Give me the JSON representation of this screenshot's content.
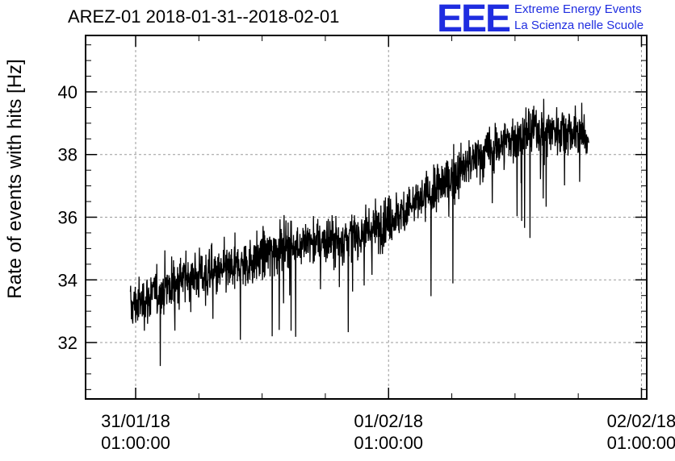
{
  "chart_data": {
    "type": "line",
    "title": "AREZ-01 2018-01-31--2018-02-01",
    "xlabel": "",
    "ylabel": "Rate of events with hits [Hz]",
    "xlim": [
      "2018-01-30T20:15:00",
      "2018-02-02T01:30:00"
    ],
    "ylim": [
      30.2,
      41.8
    ],
    "grid": true,
    "y_ticks": [
      32,
      34,
      36,
      38,
      40
    ],
    "x_ticks": [
      {
        "time": "2018-01-31T01:00:00",
        "date": "31/01/18",
        "clock": "01:00:00"
      },
      {
        "time": "2018-02-01T01:00:00",
        "date": "01/02/18",
        "clock": "01:00:00"
      },
      {
        "time": "2018-02-02T01:00:00",
        "date": "02/02/18",
        "clock": "01:00:00"
      }
    ],
    "series": [
      {
        "color": "#000000",
        "noise_amplitude": 1.0,
        "trend": [
          {
            "time": "2018-01-31T00:30:00",
            "value": 33.1
          },
          {
            "time": "2018-01-31T03:00:00",
            "value": 33.6
          },
          {
            "time": "2018-01-31T06:00:00",
            "value": 34.1
          },
          {
            "time": "2018-01-31T09:00:00",
            "value": 34.2
          },
          {
            "time": "2018-01-31T12:00:00",
            "value": 34.6
          },
          {
            "time": "2018-01-31T15:00:00",
            "value": 35.1
          },
          {
            "time": "2018-01-31T18:00:00",
            "value": 35.2
          },
          {
            "time": "2018-01-31T21:00:00",
            "value": 35.3
          },
          {
            "time": "2018-02-01T00:00:00",
            "value": 35.7
          },
          {
            "time": "2018-02-01T03:00:00",
            "value": 36.3
          },
          {
            "time": "2018-02-01T06:00:00",
            "value": 37.0
          },
          {
            "time": "2018-02-01T09:00:00",
            "value": 37.8
          },
          {
            "time": "2018-02-01T12:00:00",
            "value": 38.4
          },
          {
            "time": "2018-02-01T15:00:00",
            "value": 38.8
          },
          {
            "time": "2018-02-01T18:00:00",
            "value": 38.8
          },
          {
            "time": "2018-02-01T20:00:00",
            "value": 38.5
          }
        ]
      }
    ]
  },
  "logo": {
    "mark": "EEE",
    "line1": "Extreme Energy Events",
    "line2": "La Scienza nelle Scuole",
    "color": "#1f2de0"
  }
}
